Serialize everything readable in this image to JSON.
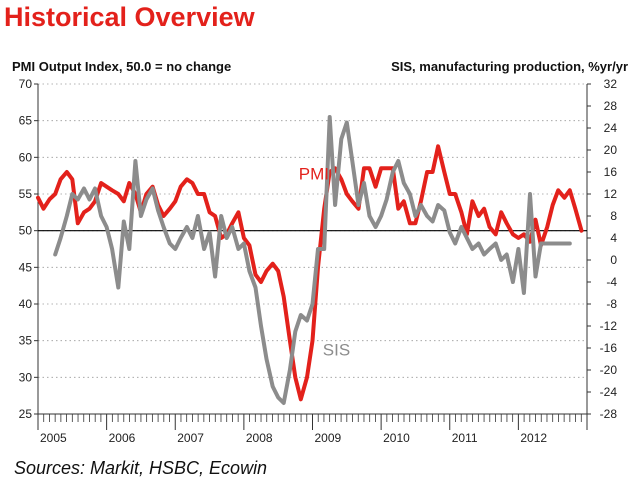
{
  "title": "Historical Overview",
  "left_axis_label": "PMI Output Index, 50.0 = no change",
  "right_axis_label": "SIS, manufacturing production, %yr/yr",
  "source": "Sources: Markit, HSBC, Ecowin",
  "colors": {
    "title": "#e3211b",
    "pmi": "#e3211b",
    "sis": "#8c8c8c",
    "reference": "#000000"
  },
  "chart_data": {
    "type": "line",
    "x_unit": "year",
    "xlim": [
      2005.0,
      2013.0
    ],
    "x_tick_labels": [
      "2005",
      "2006",
      "2007",
      "2008",
      "2009",
      "2010",
      "2011",
      "2012"
    ],
    "x_tick_positions": [
      2005,
      2006,
      2007,
      2008,
      2009,
      2010,
      2011,
      2012
    ],
    "ylim_left": [
      25,
      70
    ],
    "yticks_left": [
      25,
      30,
      35,
      40,
      45,
      50,
      55,
      60,
      65,
      70
    ],
    "ylim_right": [
      -28,
      32
    ],
    "yticks_right": [
      -28,
      -24,
      -20,
      -16,
      -12,
      -8,
      -4,
      0,
      4,
      8,
      12,
      16,
      20,
      24,
      28,
      32
    ],
    "reference_line": {
      "axis": "left",
      "value": 50
    },
    "grid": "horizontal dotted",
    "series": [
      {
        "name": "PMI",
        "axis": "left",
        "x": [
          2005.0,
          2005.08,
          2005.17,
          2005.25,
          2005.33,
          2005.42,
          2005.5,
          2005.58,
          2005.67,
          2005.75,
          2005.83,
          2005.92,
          2006.0,
          2006.08,
          2006.17,
          2006.25,
          2006.33,
          2006.42,
          2006.5,
          2006.58,
          2006.67,
          2006.75,
          2006.83,
          2006.92,
          2007.0,
          2007.08,
          2007.17,
          2007.25,
          2007.33,
          2007.42,
          2007.5,
          2007.58,
          2007.67,
          2007.75,
          2007.83,
          2007.92,
          2008.0,
          2008.08,
          2008.17,
          2008.25,
          2008.33,
          2008.42,
          2008.5,
          2008.58,
          2008.67,
          2008.75,
          2008.83,
          2008.92,
          2009.0,
          2009.08,
          2009.17,
          2009.25,
          2009.33,
          2009.42,
          2009.5,
          2009.58,
          2009.67,
          2009.75,
          2009.83,
          2009.92,
          2010.0,
          2010.08,
          2010.17,
          2010.25,
          2010.33,
          2010.42,
          2010.5,
          2010.58,
          2010.67,
          2010.75,
          2010.83,
          2010.92,
          2011.0,
          2011.08,
          2011.17,
          2011.25,
          2011.33,
          2011.42,
          2011.5,
          2011.58,
          2011.67,
          2011.75,
          2011.83,
          2011.92,
          2012.0,
          2012.08,
          2012.17,
          2012.25,
          2012.33,
          2012.42,
          2012.5,
          2012.58,
          2012.67,
          2012.75,
          2012.83,
          2012.92
        ],
        "y": [
          54.5,
          53.0,
          54.3,
          55.0,
          57.0,
          58.0,
          57.0,
          51.0,
          52.5,
          53.0,
          54.0,
          56.5,
          56.0,
          55.5,
          55.0,
          54.0,
          56.5,
          55.0,
          52.5,
          55.0,
          56.0,
          53.5,
          52.0,
          53.0,
          54.0,
          56.0,
          57.0,
          56.5,
          55.0,
          55.0,
          52.5,
          52.0,
          49.0,
          49.5,
          51.0,
          52.5,
          49.0,
          48.0,
          44.0,
          43.0,
          44.5,
          45.5,
          44.5,
          41.0,
          35.0,
          30.0,
          27.0,
          30.0,
          35.0,
          45.0,
          53.0,
          58.0,
          58.5,
          57.0,
          55.0,
          54.0,
          53.0,
          58.5,
          58.5,
          56.0,
          58.5,
          58.5,
          58.5,
          53.0,
          54.0,
          51.0,
          51.0,
          54.0,
          58.0,
          58.0,
          61.5,
          58.0,
          55.0,
          55.0,
          52.5,
          49.5,
          54.0,
          52.0,
          53.0,
          50.5,
          49.5,
          52.5,
          51.0,
          49.5,
          49.0,
          49.5,
          48.5,
          51.5,
          48.0,
          50.5,
          53.5,
          55.5,
          54.5,
          55.5,
          53.0,
          50.0
        ]
      },
      {
        "name": "SIS",
        "axis": "right",
        "x": [
          2005.25,
          2005.33,
          2005.42,
          2005.5,
          2005.58,
          2005.67,
          2005.75,
          2005.83,
          2005.92,
          2006.0,
          2006.08,
          2006.17,
          2006.25,
          2006.33,
          2006.42,
          2006.5,
          2006.58,
          2006.67,
          2006.75,
          2006.83,
          2006.92,
          2007.0,
          2007.08,
          2007.17,
          2007.25,
          2007.33,
          2007.42,
          2007.5,
          2007.58,
          2007.67,
          2007.75,
          2007.83,
          2007.92,
          2008.0,
          2008.08,
          2008.17,
          2008.25,
          2008.33,
          2008.42,
          2008.5,
          2008.58,
          2008.67,
          2008.75,
          2008.83,
          2008.92,
          2009.0,
          2009.08,
          2009.17,
          2009.25,
          2009.33,
          2009.42,
          2009.5,
          2009.58,
          2009.67,
          2009.75,
          2009.83,
          2009.92,
          2010.0,
          2010.08,
          2010.17,
          2010.25,
          2010.33,
          2010.42,
          2010.5,
          2010.58,
          2010.67,
          2010.75,
          2010.83,
          2010.92,
          2011.0,
          2011.08,
          2011.17,
          2011.25,
          2011.33,
          2011.42,
          2011.5,
          2011.58,
          2011.67,
          2011.75,
          2011.83,
          2011.92,
          2012.0,
          2012.08,
          2012.17,
          2012.25,
          2012.33,
          2012.42,
          2012.5,
          2012.58,
          2012.67,
          2012.75
        ],
        "y": [
          1,
          4,
          8,
          12,
          11,
          13,
          11,
          13,
          8,
          6,
          2,
          -5,
          7,
          2,
          18,
          8,
          11,
          13,
          9,
          6,
          3,
          2,
          4,
          6,
          4,
          8,
          2,
          5,
          -3,
          8,
          4,
          6,
          2,
          3,
          -2,
          -5,
          -12,
          -18,
          -23,
          -25,
          -26,
          -20,
          -13,
          -10,
          -11,
          -8,
          2,
          2,
          26,
          10,
          22,
          25,
          18,
          10,
          14,
          8,
          6,
          8,
          11,
          16,
          18,
          14,
          12,
          8,
          10,
          8,
          7,
          10,
          9,
          5,
          3,
          6,
          4,
          2,
          3,
          1,
          2,
          3,
          0,
          1,
          -4,
          2,
          -6,
          12,
          -3,
          3,
          3,
          3,
          3,
          3,
          3
        ]
      }
    ],
    "annotations": [
      {
        "text": "PMI",
        "x": 2008.8,
        "y_left": 57.0,
        "series": "PMI"
      },
      {
        "text": "SIS",
        "x": 2009.15,
        "y_left": 33.0,
        "series": "SIS"
      }
    ]
  }
}
